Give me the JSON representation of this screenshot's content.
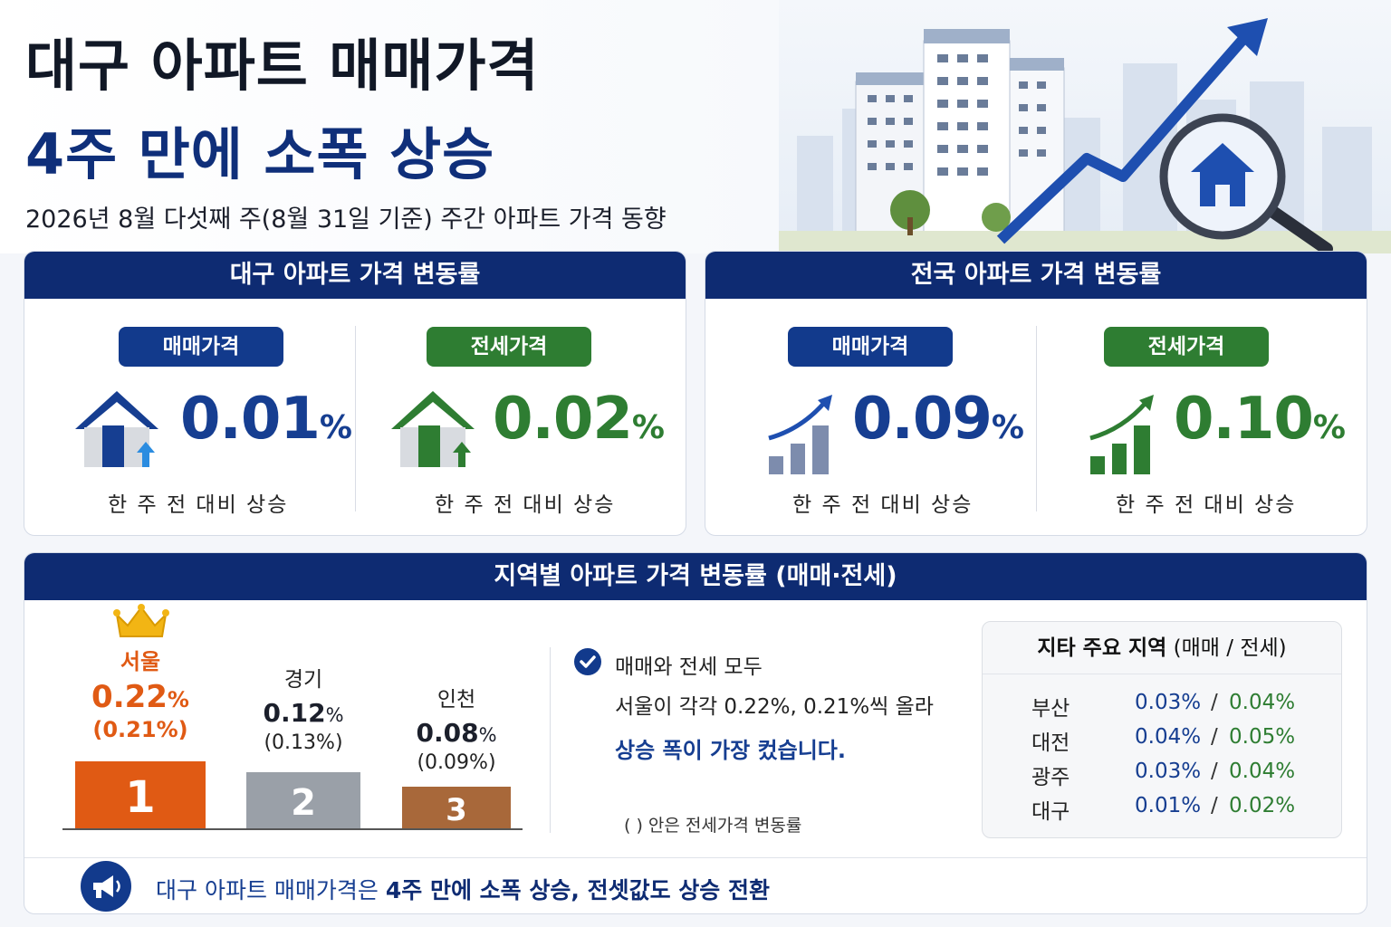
{
  "header": {
    "title_line1": "대구 아파트 매매가격",
    "title_line2": "4주 만에 소폭 상승",
    "subtitle": "2026년 8월 다섯째 주(8월 31일 기준) 주간 아파트 가격 동향"
  },
  "daegu": {
    "title": "대구 아파트 가격 변동률",
    "sale": {
      "label": "매매가격",
      "value": "0.01",
      "unit": "%",
      "caption": "한 주 전 대비 상승",
      "icon": "house-up-icon"
    },
    "jeonse": {
      "label": "전세가격",
      "value": "0.02",
      "unit": "%",
      "caption": "한 주 전 대비 상승",
      "icon": "house-up-icon"
    }
  },
  "nation": {
    "title": "전국 아파트 가격 변동률",
    "sale": {
      "label": "매매가격",
      "value": "0.09",
      "unit": "%",
      "caption": "한 주 전 대비 상승",
      "icon": "bar-chart-up-icon"
    },
    "jeonse": {
      "label": "전세가격",
      "value": "0.10",
      "unit": "%",
      "caption": "한 주 전 대비 상승",
      "icon": "bar-chart-up-icon"
    }
  },
  "region": {
    "title": "지역별 아파트 가격 변동률 (매매·전세)",
    "ranks": [
      {
        "rank": "1",
        "name": "서울",
        "sale": "0.22",
        "jeonse": "(0.21%)",
        "unit": "%"
      },
      {
        "rank": "2",
        "name": "경기",
        "sale": "0.12",
        "jeonse": "(0.13%)",
        "unit": "%"
      },
      {
        "rank": "3",
        "name": "인천",
        "sale": "0.08",
        "jeonse": "(0.09%)",
        "unit": "%"
      }
    ],
    "note_line1": "매매와 전세 모두",
    "note_line2": "서울이 각각 0.22%, 0.21%씩 올라",
    "note_line3": "상승 폭이 가장 컸습니다.",
    "note_footnote": "( ) 안은 전세가격 변동률",
    "others_title": "지타 주요 지역",
    "others_title_suffix": "(매매 / 전세)",
    "slash": "/",
    "others": [
      {
        "name": "부산",
        "sale": "0.03%",
        "jeonse": "0.04%"
      },
      {
        "name": "대전",
        "sale": "0.04%",
        "jeonse": "0.05%"
      },
      {
        "name": "광주",
        "sale": "0.03%",
        "jeonse": "0.04%"
      },
      {
        "name": "대구",
        "sale": "0.01%",
        "jeonse": "0.02%"
      }
    ]
  },
  "footer": {
    "text_pre": "대구 아파트 매매가격은",
    "text_bold": "4주 만에 소폭 상승, 전셋값도 상승 전환",
    "icon": "megaphone-icon"
  },
  "colors": {
    "navy": "#0e2b72",
    "blue_value": "#163e91",
    "green": "#2e7d32",
    "rank1": "#e05a14",
    "rank2": "#9aa0a8",
    "rank3": "#a8683a"
  }
}
